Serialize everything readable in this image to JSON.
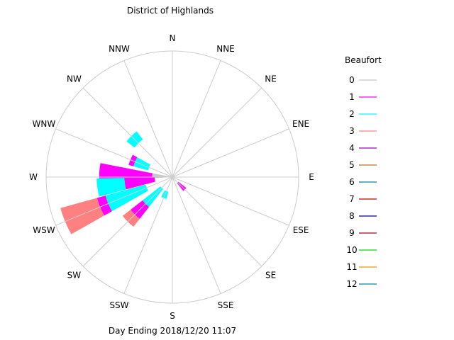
{
  "chart_data": {
    "type": "wind_rose",
    "title": "District of Highlands",
    "subtitle": "Day Ending 2018/12/20 11:07",
    "directions": [
      "N",
      "NNE",
      "NE",
      "ENE",
      "E",
      "ESE",
      "SE",
      "SSE",
      "S",
      "SSW",
      "SW",
      "WSW",
      "W",
      "WNW",
      "NW",
      "NNW"
    ],
    "legend_title": "Beaufort",
    "legend_placement": "right",
    "beaufort_levels": [
      {
        "label": "0",
        "color": "#c8c8c8"
      },
      {
        "label": "1",
        "color": "#ff00ff"
      },
      {
        "label": "2",
        "color": "#00ffff"
      },
      {
        "label": "3",
        "color": "#ff8080"
      },
      {
        "label": "4",
        "color": "#a000c8"
      },
      {
        "label": "5",
        "color": "#b4781e"
      },
      {
        "label": "6",
        "color": "#0082a0"
      },
      {
        "label": "7",
        "color": "#c80000"
      },
      {
        "label": "8",
        "color": "#000096"
      },
      {
        "label": "9",
        "color": "#b4001e"
      },
      {
        "label": "10",
        "color": "#00dc00"
      },
      {
        "label": "11",
        "color": "#e69600"
      },
      {
        "label": "12",
        "color": "#008ca0"
      }
    ],
    "radial_max": 100,
    "sectors": [
      {
        "direction": "NW",
        "stack": [
          {
            "level": 2,
            "from": 38,
            "to": 46
          }
        ]
      },
      {
        "direction": "WNW",
        "stack": [
          {
            "level": 2,
            "from": 20,
            "to": 32
          },
          {
            "level": 1,
            "from": 32,
            "to": 36
          }
        ]
      },
      {
        "direction": "W",
        "stack": [
          {
            "level": 0,
            "from": 0,
            "to": 16
          },
          {
            "level": 1,
            "from": 16,
            "to": 58
          }
        ]
      },
      {
        "direction": "W",
        "stack": [
          {
            "level": 1,
            "from": 14,
            "to": 38
          },
          {
            "level": 2,
            "from": 38,
            "to": 60
          }
        ]
      },
      {
        "direction": "WSW",
        "stack": [
          {
            "level": 2,
            "from": 22,
            "to": 55
          },
          {
            "level": 1,
            "from": 55,
            "to": 62
          },
          {
            "level": 3,
            "from": 62,
            "to": 92
          }
        ]
      },
      {
        "direction": "SW",
        "stack": [
          {
            "level": 2,
            "from": 12,
            "to": 30
          },
          {
            "level": 1,
            "from": 30,
            "to": 42
          },
          {
            "level": 3,
            "from": 42,
            "to": 50
          }
        ]
      },
      {
        "direction": "SSW",
        "stack": [
          {
            "level": 2,
            "from": 12,
            "to": 18
          }
        ]
      },
      {
        "direction": "SE",
        "stack": [
          {
            "level": 1,
            "from": 6,
            "to": 14
          }
        ]
      }
    ]
  }
}
